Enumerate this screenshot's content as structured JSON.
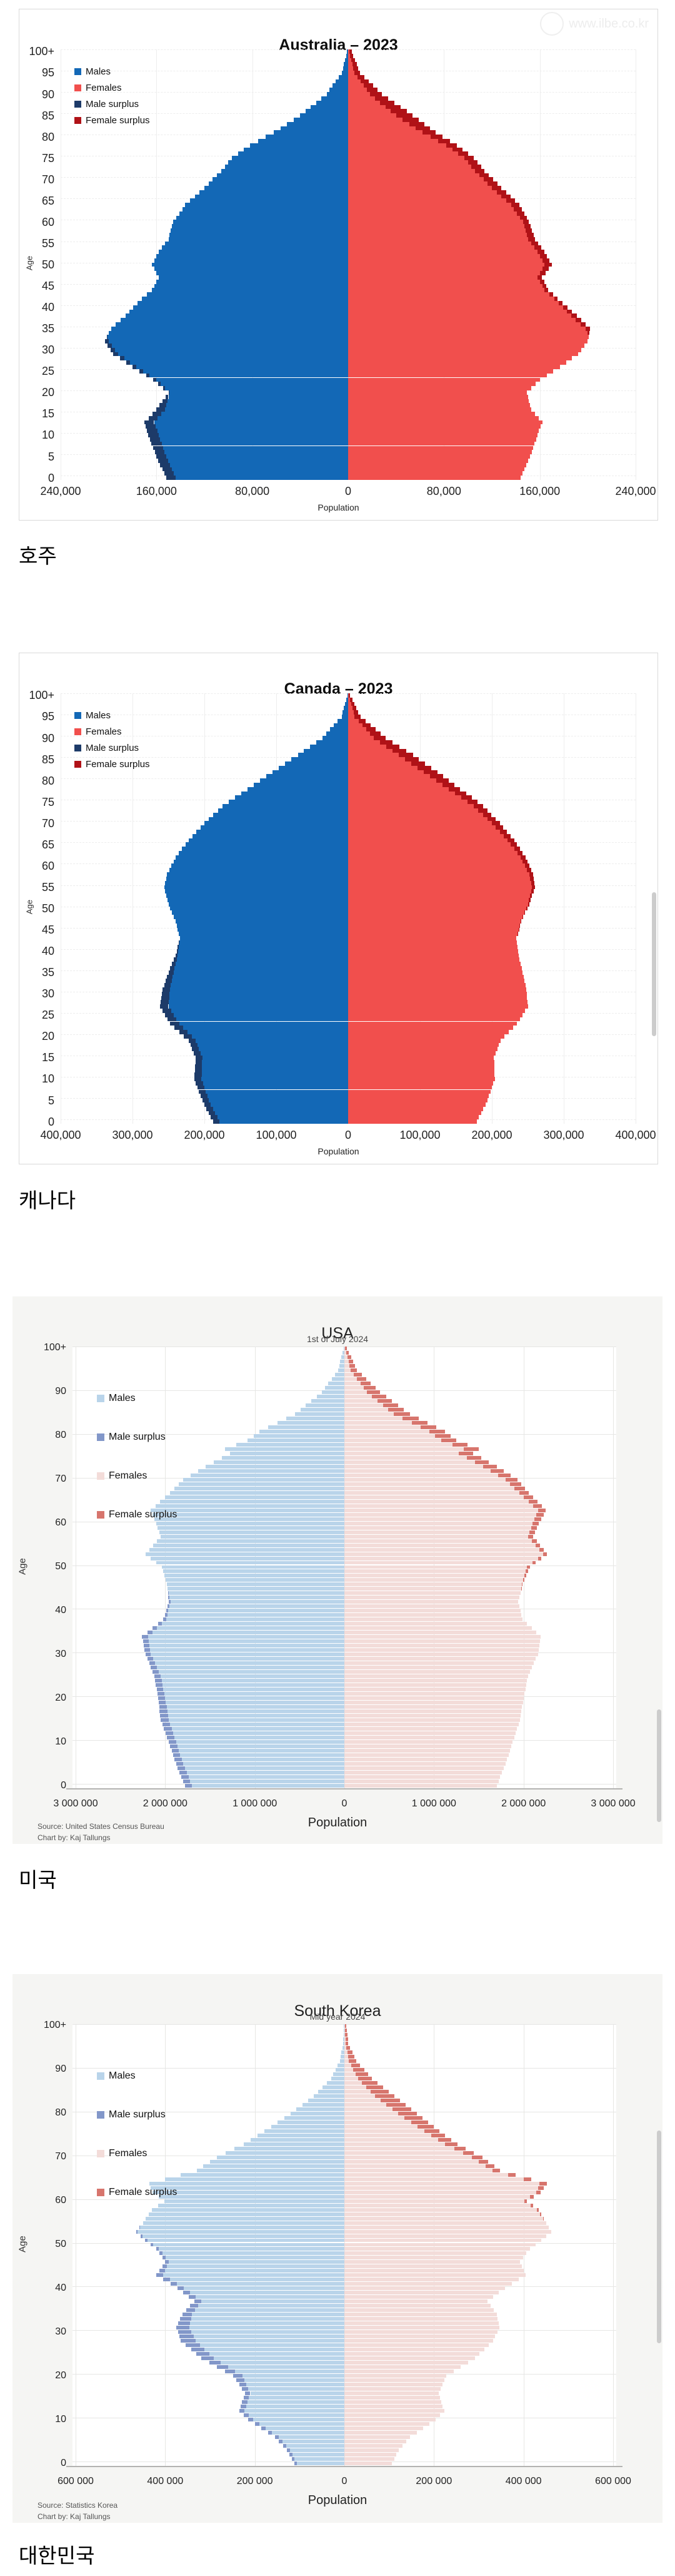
{
  "page": {
    "watermark_text": "www.ilbe.co.kr"
  },
  "captions": {
    "australia": "호주",
    "canada": "캐나다",
    "usa": "미국",
    "south_korea": "대한민국"
  },
  "charts": [
    {
      "title": "Australia – 2023",
      "subtitle": "",
      "style": "bright",
      "xlabel": "Population",
      "ylabel": "Age",
      "source": "",
      "chart_by": "",
      "legend": [
        {
          "label": "Males",
          "key": "male"
        },
        {
          "label": "Females",
          "key": "female"
        },
        {
          "label": "Male surplus",
          "key": "male_surplus"
        },
        {
          "label": "Female surplus",
          "key": "female_surplus"
        }
      ],
      "colors": {
        "male": "#1368b6",
        "female": "#f14f4d",
        "male_surplus": "#1d3b69",
        "female_surplus": "#b01217"
      },
      "y_ticks": [
        "100+",
        "95",
        "90",
        "85",
        "80",
        "75",
        "70",
        "65",
        "60",
        "55",
        "50",
        "45",
        "40",
        "35",
        "30",
        "25",
        "20",
        "15",
        "10",
        "5",
        "0"
      ],
      "y_tick_step": 5,
      "x_tick_labels": [
        "240,000",
        "160,000",
        "80,000",
        "0",
        "80,000",
        "160,000",
        "240,000"
      ],
      "chart_data": {
        "type": "bar",
        "subtype": "population-pyramid",
        "axis_max": 240000,
        "x_tick_values": [
          -240000,
          -160000,
          -80000,
          0,
          80000,
          160000,
          240000
        ],
        "age_anchor_points": [
          0,
          5,
          10,
          13,
          16,
          20,
          23,
          26,
          29,
          32,
          35,
          38,
          41,
          44,
          47,
          50,
          53,
          56,
          60,
          64,
          68,
          72,
          75,
          78,
          81,
          85,
          90,
          95,
          100
        ],
        "series": [
          {
            "name": "Males",
            "values": [
              152000,
              160000,
              167000,
              170000,
              160000,
              150000,
              163000,
              180000,
              196000,
              203000,
              198000,
              186000,
              176000,
              164000,
              158000,
              164000,
              158000,
              150000,
              146000,
              136000,
              120000,
              106000,
              97000,
              82000,
              62000,
              40000,
              18000,
              5000,
              1000
            ]
          },
          {
            "name": "Females",
            "values": [
              144000,
              152000,
              158000,
              162000,
              153000,
              149000,
              160000,
              177000,
              192000,
              200000,
              202000,
              191000,
              179000,
              167000,
              162000,
              170000,
              164000,
              156000,
              151000,
              143000,
              128000,
              114000,
              105000,
              91000,
              73000,
              54000,
              28000,
              10000,
              3000
            ]
          }
        ]
      }
    },
    {
      "title": "Canada – 2023",
      "subtitle": "",
      "style": "bright",
      "xlabel": "Population",
      "ylabel": "Age",
      "source": "",
      "chart_by": "",
      "legend": [
        {
          "label": "Males",
          "key": "male"
        },
        {
          "label": "Females",
          "key": "female"
        },
        {
          "label": "Male surplus",
          "key": "male_surplus"
        },
        {
          "label": "Female surplus",
          "key": "female_surplus"
        }
      ],
      "colors": {
        "male": "#1368b6",
        "female": "#f14f4d",
        "male_surplus": "#1d3b69",
        "female_surplus": "#b01217"
      },
      "y_ticks": [
        "100+",
        "95",
        "90",
        "85",
        "80",
        "75",
        "70",
        "65",
        "60",
        "55",
        "50",
        "45",
        "40",
        "35",
        "30",
        "25",
        "20",
        "15",
        "10",
        "5",
        "0"
      ],
      "y_tick_step": 5,
      "x_tick_labels": [
        "400,000",
        "300,000",
        "200,000",
        "100,000",
        "0",
        "100,000",
        "200,000",
        "300,000",
        "400,000"
      ],
      "chart_data": {
        "type": "bar",
        "subtype": "population-pyramid",
        "axis_max": 400000,
        "x_tick_values": [
          -400000,
          -300000,
          -200000,
          -100000,
          0,
          100000,
          200000,
          300000,
          400000
        ],
        "age_anchor_points": [
          0,
          5,
          10,
          15,
          19,
          23,
          27,
          31,
          35,
          39,
          43,
          47,
          51,
          55,
          58,
          62,
          66,
          70,
          74,
          78,
          82,
          86,
          90,
          95,
          100
        ],
        "series": [
          {
            "name": "Males",
            "values": [
              188000,
              203000,
              214000,
              212000,
              222000,
              248000,
              262000,
              258000,
              250000,
              240000,
              234000,
              240000,
              250000,
              256000,
              252000,
              240000,
              222000,
              200000,
              175000,
              140000,
              105000,
              70000,
              36000,
              9000,
              1000
            ]
          },
          {
            "name": "Females",
            "values": [
              179000,
              194000,
              204000,
              203000,
              212000,
              235000,
              250000,
              248000,
              243000,
              237000,
              234000,
              241000,
              252000,
              260000,
              257000,
              247000,
              231000,
              211000,
              188000,
              156000,
              124000,
              90000,
              52000,
              17000,
              3000
            ]
          }
        ]
      }
    },
    {
      "title": "USA",
      "subtitle": "1st of July 2024",
      "style": "muted",
      "xlabel": "Population",
      "ylabel": "Age",
      "source": "Source: United States Census Bureau",
      "chart_by": "Chart by: Kaj Tallungs",
      "legend": [
        {
          "label": "Males",
          "key": "male"
        },
        {
          "label": "Male surplus",
          "key": "male_surplus"
        },
        {
          "label": "Females",
          "key": "female"
        },
        {
          "label": "Female surplus",
          "key": "female_surplus"
        }
      ],
      "colors": {
        "male": "#b9d4ea",
        "female": "#f3dcd9",
        "male_surplus": "#8297c9",
        "female_surplus": "#d7756d"
      },
      "y_ticks": [
        "100+",
        "90",
        "80",
        "70",
        "60",
        "50",
        "40",
        "30",
        "20",
        "10",
        "0"
      ],
      "y_tick_step": 10,
      "x_tick_labels": [
        "3 000 000",
        "2 000 000",
        "1 000 000",
        "0",
        "1 000 000",
        "2 000 000",
        "3 000 000"
      ],
      "chart_data": {
        "type": "bar",
        "subtype": "population-pyramid",
        "axis_max": 3000000,
        "x_tick_values": [
          -3000000,
          -2000000,
          -1000000,
          0,
          1000000,
          2000000,
          3000000
        ],
        "age_anchor_points": [
          0,
          5,
          10,
          15,
          20,
          25,
          30,
          34,
          38,
          42,
          46,
          50,
          53,
          57,
          60,
          63,
          67,
          70,
          73,
          76,
          77,
          79,
          81,
          85,
          90,
          95,
          100
        ],
        "series": [
          {
            "name": "Males",
            "values": [
              1780000,
              1880000,
              1960000,
              2050000,
              2080000,
              2120000,
              2220000,
              2260000,
              2020000,
              1960000,
              1980000,
              2040000,
              2220000,
              2050000,
              2100000,
              2160000,
              1950000,
              1800000,
              1550000,
              1280000,
              1330000,
              1080000,
              950000,
              550000,
              250000,
              70000,
              10000
            ]
          },
          {
            "name": "Females",
            "values": [
              1700000,
              1800000,
              1880000,
              1960000,
              2000000,
              2050000,
              2160000,
              2190000,
              1990000,
              1940000,
              1990000,
              2070000,
              2260000,
              2110000,
              2170000,
              2250000,
              2060000,
              1930000,
              1700000,
              1440000,
              1500000,
              1250000,
              1120000,
              730000,
              400000,
              140000,
              30000
            ]
          }
        ]
      }
    },
    {
      "title": "South Korea",
      "subtitle": "Mid year 2024",
      "style": "muted",
      "xlabel": "Population",
      "ylabel": "Age",
      "source": "Source: Statistics Korea",
      "chart_by": "Chart by: Kaj Tallungs",
      "legend": [
        {
          "label": "Males",
          "key": "male"
        },
        {
          "label": "Male surplus",
          "key": "male_surplus"
        },
        {
          "label": "Females",
          "key": "female"
        },
        {
          "label": "Female surplus",
          "key": "female_surplus"
        }
      ],
      "colors": {
        "male": "#b9d4ea",
        "female": "#f3dcd9",
        "male_surplus": "#8297c9",
        "female_surplus": "#d7756d"
      },
      "y_ticks": [
        "100+",
        "90",
        "80",
        "70",
        "60",
        "50",
        "40",
        "30",
        "20",
        "10",
        "0"
      ],
      "y_tick_step": 10,
      "x_tick_labels": [
        "600 000",
        "400 000",
        "200 000",
        "0",
        "200 000",
        "400 000",
        "600 000"
      ],
      "chart_data": {
        "type": "bar",
        "subtype": "population-pyramid",
        "axis_max": 600000,
        "x_tick_values": [
          -600000,
          -400000,
          -200000,
          0,
          200000,
          400000,
          600000
        ],
        "age_anchor_points": [
          0,
          3,
          6,
          10,
          12,
          16,
          20,
          24,
          28,
          31,
          34,
          37,
          40,
          43,
          46,
          49,
          51,
          53,
          55,
          58,
          60,
          62,
          64,
          67,
          70,
          73,
          76,
          80,
          84,
          88,
          92,
          96,
          100
        ],
        "series": [
          {
            "name": "Males",
            "values": [
              112000,
              128000,
              155000,
              215000,
              235000,
              222000,
              248000,
              320000,
              365000,
              375000,
              362000,
              335000,
              372000,
              420000,
              400000,
              420000,
              445000,
              465000,
              450000,
              430000,
              402000,
              428000,
              436000,
              330000,
              285000,
              225000,
              178000,
              120000,
              68000,
              30000,
              10000,
              3000,
              1000
            ]
          },
          {
            "name": "Females",
            "values": [
              106000,
              121000,
              147000,
              204000,
              223000,
              210000,
              228000,
              292000,
              332000,
              346000,
              340000,
              320000,
              358000,
              405000,
              392000,
              414000,
              440000,
              462000,
              450000,
              434000,
              408000,
              438000,
              452000,
              348000,
              308000,
              252000,
              212000,
              162000,
              112000,
              62000,
              26000,
              9000,
              4000
            ]
          }
        ]
      }
    }
  ]
}
